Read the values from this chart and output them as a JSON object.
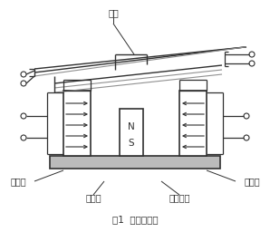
{
  "title": "图1  原理示意图",
  "label_衔铁": "衔铁",
  "label_左边柱": "左边柱",
  "label_右边柱": "右边柱",
  "label_磁轭板": "磁轭板",
  "label_永久磁铁": "永久磁铁",
  "label_N": "N",
  "label_S": "S",
  "bg_color": "#ffffff",
  "lc": "#303030",
  "gc": "#909090"
}
